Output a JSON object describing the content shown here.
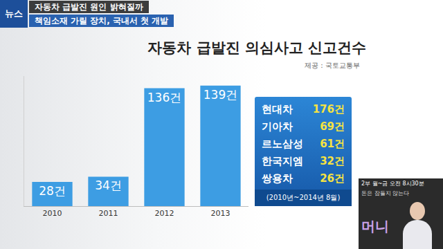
{
  "header": {
    "logo": "뉴스",
    "headline": "자동차 급발진 원인 밝혀질까",
    "subheadline": "책임소재 가릴 장치, 국내서 첫 개발"
  },
  "chart_data": {
    "type": "bar",
    "title": "자동차 급발진 의심사고 신고건수",
    "subtitle": "제공 : 국토교통부",
    "categories": [
      "2010",
      "2011",
      "2012",
      "2013"
    ],
    "values": [
      28,
      34,
      136,
      139
    ],
    "value_labels": [
      "28건",
      "34건",
      "136건",
      "139건"
    ],
    "color": "#3d9de3",
    "ylim": [
      0,
      150
    ],
    "yticks": [],
    "data_labels": true,
    "tick_labels": "x",
    "grid": false
  },
  "maker_table": {
    "rows": [
      {
        "maker": "현대차",
        "count": "176건"
      },
      {
        "maker": "기아차",
        "count": "69건"
      },
      {
        "maker": "르노삼성",
        "count": "61건"
      },
      {
        "maker": "한국지엠",
        "count": "32건"
      },
      {
        "maker": "쌍용차",
        "count": "26건"
      }
    ],
    "note": "(2010년~2014년 8월)"
  },
  "promo": {
    "schedule": "2부 월~금 오전 8시30분",
    "slogan": "돈은 잠들지 않는다",
    "logo": "머니"
  }
}
